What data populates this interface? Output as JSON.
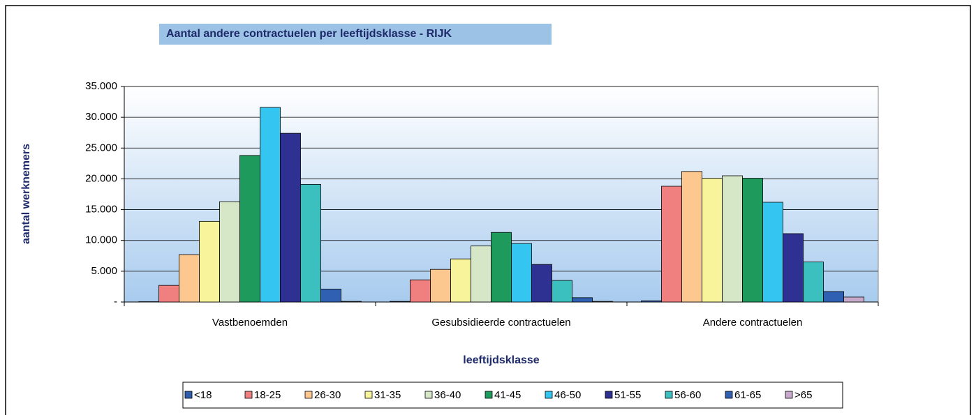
{
  "chart_data": {
    "type": "bar",
    "title": "Aantal andere contractuelen per leeftijdsklasse - RIJK",
    "y_label": "aantal werknemers",
    "x_label": "leeftijdsklasse",
    "categories": [
      "Vastbenoemden",
      "Gesubsidieerde contractuelen",
      "Andere contractuelen"
    ],
    "series": [
      {
        "name": "<18",
        "color": "#2f5cab",
        "values": [
          50,
          100,
          200
        ]
      },
      {
        "name": "18-25",
        "color": "#f07f7f",
        "values": [
          2700,
          3600,
          18800
        ]
      },
      {
        "name": "26-30",
        "color": "#fcc890",
        "values": [
          7700,
          5300,
          21200
        ]
      },
      {
        "name": "31-35",
        "color": "#f8f49c",
        "values": [
          13100,
          7000,
          20100
        ]
      },
      {
        "name": "36-40",
        "color": "#d5e7c6",
        "values": [
          16300,
          9100,
          20500
        ]
      },
      {
        "name": "41-45",
        "color": "#1e9a5c",
        "values": [
          23800,
          11300,
          20100
        ]
      },
      {
        "name": "46-50",
        "color": "#34c5f1",
        "values": [
          31600,
          9500,
          16200
        ]
      },
      {
        "name": "51-55",
        "color": "#2e3192",
        "values": [
          27400,
          6100,
          11100
        ]
      },
      {
        "name": "56-60",
        "color": "#3cbfbf",
        "values": [
          19100,
          3500,
          6500
        ]
      },
      {
        "name": "61-65",
        "color": "#2f60b2",
        "values": [
          2100,
          700,
          1700
        ]
      },
      {
        "name": ">65",
        "color": "#c9a9cb",
        "values": [
          100,
          100,
          800
        ]
      }
    ],
    "ylim": [
      0,
      35000
    ],
    "yticks": [
      {
        "value": 0,
        "label": "-"
      },
      {
        "value": 5000,
        "label": "5.000"
      },
      {
        "value": 10000,
        "label": "10.000"
      },
      {
        "value": 15000,
        "label": "15.000"
      },
      {
        "value": 20000,
        "label": "20.000"
      },
      {
        "value": 25000,
        "label": "25.000"
      },
      {
        "value": 30000,
        "label": "30.000"
      },
      {
        "value": 35000,
        "label": "35.000"
      }
    ],
    "grid": true,
    "legend": "bottom"
  }
}
